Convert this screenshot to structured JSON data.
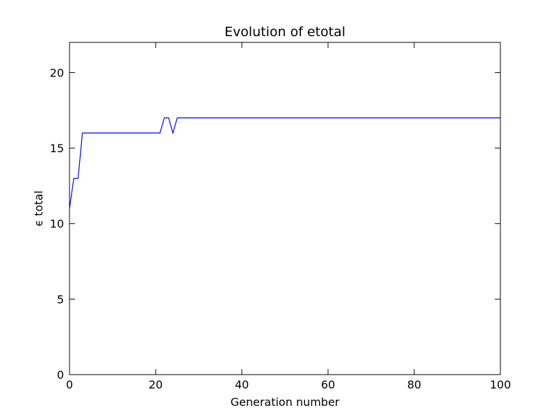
{
  "chart_data": {
    "type": "line",
    "title": "Evolution of etotal",
    "xlabel": "Generation number",
    "ylabel": "ϵ total",
    "xlim": [
      0,
      100
    ],
    "ylim": [
      0,
      22
    ],
    "grid": false,
    "xticks": [
      0,
      20,
      40,
      60,
      80,
      100
    ],
    "yticks": [
      0,
      5,
      10,
      15,
      20
    ],
    "x_tick_labels": [
      "0",
      "20",
      "40",
      "60",
      "80",
      "100"
    ],
    "y_tick_labels": [
      "0",
      "5",
      "10",
      "15",
      "20"
    ],
    "colors": {
      "line": "#0000ff"
    },
    "series": [
      {
        "x": [
          0,
          1,
          2,
          3,
          21,
          22,
          23,
          24,
          25,
          100
        ],
        "y": [
          11,
          13,
          13,
          16,
          16,
          17,
          17,
          16,
          17,
          17
        ]
      }
    ]
  }
}
